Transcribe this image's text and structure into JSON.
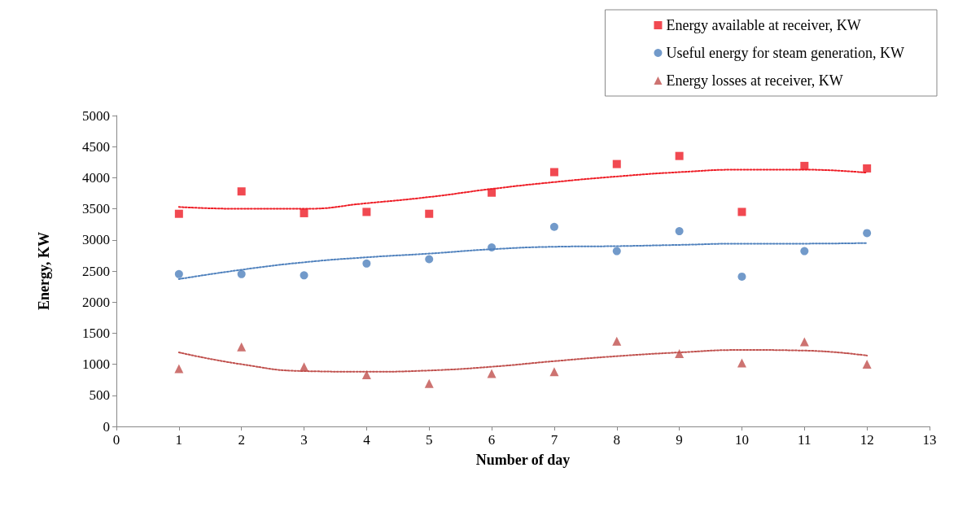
{
  "chart_data": {
    "type": "scatter",
    "xlabel": "Number of day",
    "ylabel": "Energy, KW",
    "xlim": [
      0,
      13
    ],
    "xticks": [
      0,
      1,
      2,
      3,
      4,
      5,
      6,
      7,
      8,
      9,
      10,
      11,
      12,
      13
    ],
    "ylim": [
      0,
      5000
    ],
    "yticks": [
      0,
      500,
      1000,
      1500,
      2000,
      2500,
      3000,
      3500,
      4000,
      4500,
      5000
    ],
    "grid": false,
    "legend": "top right",
    "series": [
      {
        "name": "Energy available at receiver, KW",
        "color": "#ee1c25",
        "marker": "square",
        "x": [
          1,
          2,
          3,
          4,
          5,
          6,
          7,
          8,
          9,
          10,
          11,
          12
        ],
        "values": [
          3420,
          3780,
          3430,
          3450,
          3420,
          3760,
          4090,
          4220,
          4350,
          3450,
          4190,
          4150
        ]
      },
      {
        "name": "Useful energy for steam generation, KW",
        "color": "#4f81bd",
        "marker": "circle",
        "x": [
          1,
          2,
          3,
          4,
          5,
          6,
          7,
          8,
          9,
          10,
          11,
          12
        ],
        "values": [
          2450,
          2450,
          2430,
          2620,
          2690,
          2880,
          3210,
          2820,
          3140,
          2410,
          2820,
          3110
        ]
      },
      {
        "name": "Energy losses at receiver, KW",
        "color": "#c0504d",
        "marker": "triangle",
        "x": [
          1,
          2,
          3,
          4,
          5,
          6,
          7,
          8,
          9,
          10,
          11,
          12
        ],
        "values": [
          930,
          1280,
          960,
          830,
          690,
          850,
          880,
          1370,
          1170,
          1020,
          1360,
          1000
        ]
      },
      {
        "type": "line",
        "color": "#ee1c25",
        "marker": "none",
        "line_style": "dotted",
        "x": [
          1,
          2,
          3,
          4,
          5,
          6,
          7,
          8,
          9,
          10,
          11,
          12
        ],
        "values": [
          3530,
          3500,
          3500,
          3590,
          3690,
          3820,
          3930,
          4020,
          4090,
          4130,
          4130,
          4080
        ]
      },
      {
        "type": "line",
        "color": "#4f81bd",
        "marker": "none",
        "line_style": "dotted",
        "x": [
          1,
          2,
          3,
          4,
          5,
          6,
          7,
          8,
          9,
          10,
          11,
          12
        ],
        "values": [
          2370,
          2520,
          2640,
          2720,
          2780,
          2850,
          2890,
          2900,
          2920,
          2940,
          2940,
          2950
        ]
      },
      {
        "type": "line",
        "color": "#c0504d",
        "marker": "none",
        "line_style": "dotted",
        "x": [
          1,
          2,
          3,
          4,
          5,
          6,
          7,
          8,
          9,
          10,
          11,
          12
        ],
        "values": [
          1190,
          1000,
          890,
          880,
          900,
          960,
          1050,
          1130,
          1190,
          1230,
          1220,
          1140
        ]
      }
    ]
  }
}
